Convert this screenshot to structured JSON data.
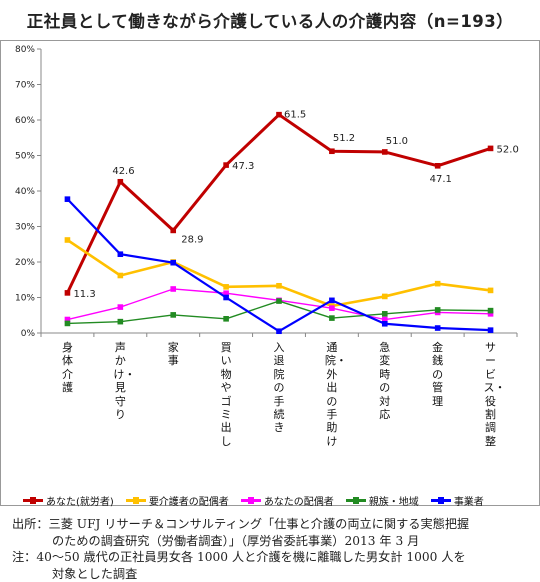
{
  "title": "正社員として働きながら介護している人の介護内容（n=193）",
  "chart_data": {
    "type": "line",
    "title": "正社員として働きながら介護している人の介護内容（n=193）",
    "xlabel": "",
    "ylabel": "",
    "ylim": [
      0,
      80
    ],
    "y_ticks": [
      "0%",
      "10%",
      "20%",
      "30%",
      "40%",
      "50%",
      "60%",
      "70%",
      "80%"
    ],
    "grid": false,
    "legend_position": "bottom",
    "categories": [
      "身体介護",
      "声かけ・見守り",
      "家事",
      "買い物やゴミ出し",
      "入退院の手続き",
      "通院・外出の手助け",
      "急変時の対応",
      "金銭の管理",
      "サービス・役割調整"
    ],
    "series": [
      {
        "name": "あなた(就労者)",
        "color": "#c00000",
        "values": [
          11.3,
          42.6,
          28.9,
          47.3,
          61.5,
          51.2,
          51.0,
          47.1,
          52.0
        ],
        "labels": [
          "11.3",
          "42.6",
          "28.9",
          "47.3",
          "61.5",
          "51.2",
          "51.0",
          "47.1",
          "52.0"
        ]
      },
      {
        "name": "要介護者の配偶者",
        "color": "#ffc000",
        "values": [
          26.2,
          16.2,
          20.0,
          13.0,
          13.3,
          7.6,
          10.3,
          13.9,
          12.0
        ]
      },
      {
        "name": "あなたの配偶者",
        "color": "#ff00ff",
        "values": [
          3.8,
          7.3,
          12.4,
          11.2,
          9.2,
          7.0,
          3.8,
          5.8,
          5.4
        ]
      },
      {
        "name": "親族・地域",
        "color": "#228b22",
        "values": [
          2.7,
          3.2,
          5.1,
          4.0,
          9.0,
          4.2,
          5.4,
          6.5,
          6.3
        ]
      },
      {
        "name": "事業者",
        "color": "#0000ff",
        "values": [
          37.7,
          22.2,
          19.8,
          10.0,
          0.5,
          9.2,
          2.6,
          1.4,
          0.8
        ]
      }
    ]
  },
  "source": {
    "line1": "出所：三菱 UFJ リサーチ＆コンサルティング「仕事と介護の両立に関する実態把握",
    "line2": "のための調査研究（労働者調査）」（厚労省委託事業）2013 年 3 月",
    "line3": "注：40～50 歳代の正社員男女各 1000 人と介護を機に離職した男女計 1000 人を",
    "line4": "対象とした調査"
  }
}
